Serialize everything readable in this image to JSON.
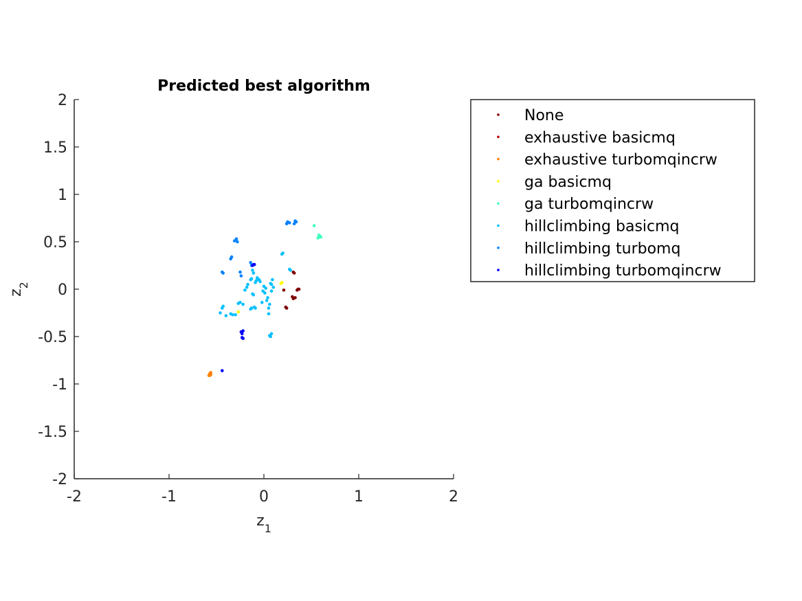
{
  "chart_data": {
    "type": "scatter",
    "title": "Predicted best algorithm",
    "xlabel": {
      "base": "z",
      "sub": "1"
    },
    "ylabel": {
      "base": "z",
      "sub": "2"
    },
    "xlim": [
      -2,
      2
    ],
    "ylim": [
      -2,
      2
    ],
    "xticks": [
      -2,
      -1,
      0,
      1,
      2
    ],
    "xtick_labels": [
      "-2",
      "-1",
      "0",
      "1",
      "2"
    ],
    "yticks": [
      2,
      1.5,
      1,
      0.5,
      0,
      -0.5,
      -1,
      -1.5,
      -2
    ],
    "ytick_labels": [
      "2",
      "1.5",
      "1",
      "0.5",
      "0",
      "-0.5",
      "-1",
      "-1.5",
      "-2"
    ],
    "grid": false,
    "legend_position": "outside-right",
    "series": [
      {
        "name": "None",
        "color": "#800000",
        "points": [
          [
            0.31,
            0.18
          ],
          [
            0.32,
            0.17
          ],
          [
            0.3,
            -0.08
          ],
          [
            0.31,
            -0.1
          ],
          [
            0.33,
            -0.09
          ],
          [
            0.35,
            -0.01
          ],
          [
            0.36,
            0.0
          ],
          [
            0.37,
            0.0
          ],
          [
            0.23,
            -0.19
          ],
          [
            0.24,
            -0.2
          ],
          [
            0.21,
            -0.01
          ]
        ]
      },
      {
        "name": "exhaustive basicmq",
        "color": "#b40000",
        "points": []
      },
      {
        "name": "exhaustive turbomqincrw",
        "color": "#ff8000",
        "points": [
          [
            -0.57,
            -0.89
          ],
          [
            -0.56,
            -0.9
          ],
          [
            -0.58,
            -0.91
          ],
          [
            -0.57,
            -0.91
          ],
          [
            -0.56,
            -0.88
          ]
        ]
      },
      {
        "name": "ga basicmq",
        "color": "#ffff00",
        "points": [
          [
            0.18,
            0.06
          ],
          [
            0.19,
            0.07
          ],
          [
            -0.27,
            -0.24
          ]
        ]
      },
      {
        "name": "ga turbomqincrw",
        "color": "#40ffc0",
        "points": [
          [
            0.53,
            0.67
          ],
          [
            0.57,
            0.54
          ],
          [
            0.58,
            0.55
          ],
          [
            0.59,
            0.56
          ],
          [
            0.58,
            0.57
          ],
          [
            0.6,
            0.55
          ]
        ]
      },
      {
        "name": "hillclimbing basicmq",
        "color": "#00c0ff",
        "points": [
          [
            -0.46,
            -0.25
          ],
          [
            -0.44,
            -0.2
          ],
          [
            -0.43,
            -0.18
          ],
          [
            -0.4,
            -0.28
          ],
          [
            -0.35,
            -0.26
          ],
          [
            -0.33,
            -0.27
          ],
          [
            -0.3,
            -0.27
          ],
          [
            -0.27,
            -0.15
          ],
          [
            -0.25,
            -0.14
          ],
          [
            -0.22,
            -0.16
          ],
          [
            -0.2,
            -0.01
          ],
          [
            -0.18,
            0.02
          ],
          [
            -0.17,
            0.05
          ],
          [
            -0.14,
            0.1
          ],
          [
            -0.13,
            0.11
          ],
          [
            -0.12,
            0.2
          ],
          [
            -0.11,
            0.17
          ],
          [
            -0.12,
            -0.05
          ],
          [
            -0.11,
            -0.06
          ],
          [
            -0.09,
            0.07
          ],
          [
            -0.08,
            0.09
          ],
          [
            -0.07,
            0.12
          ],
          [
            -0.05,
            0.1
          ],
          [
            -0.04,
            0.08
          ],
          [
            -0.02,
            -0.14
          ],
          [
            -0.01,
            -0.02
          ],
          [
            0.0,
            0.03
          ],
          [
            0.01,
            -0.04
          ],
          [
            0.02,
            0.01
          ],
          [
            0.03,
            -0.12
          ],
          [
            0.04,
            -0.09
          ],
          [
            0.05,
            -0.2
          ],
          [
            0.05,
            -0.26
          ],
          [
            0.06,
            -0.16
          ],
          [
            0.07,
            0.06
          ],
          [
            0.08,
            0.05
          ],
          [
            0.08,
            -0.02
          ],
          [
            0.09,
            0.1
          ],
          [
            0.1,
            0.02
          ],
          [
            0.06,
            -0.49
          ],
          [
            0.07,
            -0.5
          ],
          [
            0.08,
            -0.47
          ],
          [
            0.19,
            0.37
          ],
          [
            0.2,
            0.38
          ],
          [
            0.27,
            0.21
          ],
          [
            0.28,
            0.2
          ],
          [
            -0.09,
            -0.2
          ],
          [
            -0.1,
            -0.19
          ],
          [
            -0.14,
            -0.21
          ],
          [
            -0.13,
            -0.2
          ]
        ]
      },
      {
        "name": "hillclimbing turbomq",
        "color": "#0080ff",
        "points": [
          [
            -0.31,
            0.51
          ],
          [
            -0.29,
            0.53
          ],
          [
            -0.28,
            0.5
          ],
          [
            -0.34,
            0.34
          ],
          [
            -0.35,
            0.32
          ],
          [
            -0.43,
            0.17
          ],
          [
            -0.44,
            0.18
          ],
          [
            -0.25,
            0.18
          ],
          [
            -0.24,
            0.14
          ],
          [
            -0.14,
            0.28
          ],
          [
            -0.13,
            0.25
          ],
          [
            0.24,
            0.69
          ],
          [
            0.25,
            0.71
          ],
          [
            0.27,
            0.7
          ],
          [
            0.32,
            0.69
          ],
          [
            0.33,
            0.72
          ],
          [
            0.34,
            0.71
          ]
        ]
      },
      {
        "name": "hillclimbing turbomqincrw",
        "color": "#0000ff",
        "points": [
          [
            -0.24,
            -0.45
          ],
          [
            -0.23,
            -0.47
          ],
          [
            -0.22,
            -0.44
          ],
          [
            -0.23,
            -0.51
          ],
          [
            -0.22,
            -0.52
          ],
          [
            -0.44,
            -0.86
          ],
          [
            -0.12,
            0.25
          ],
          [
            -0.11,
            0.26
          ],
          [
            -0.1,
            0.26
          ]
        ]
      }
    ]
  }
}
